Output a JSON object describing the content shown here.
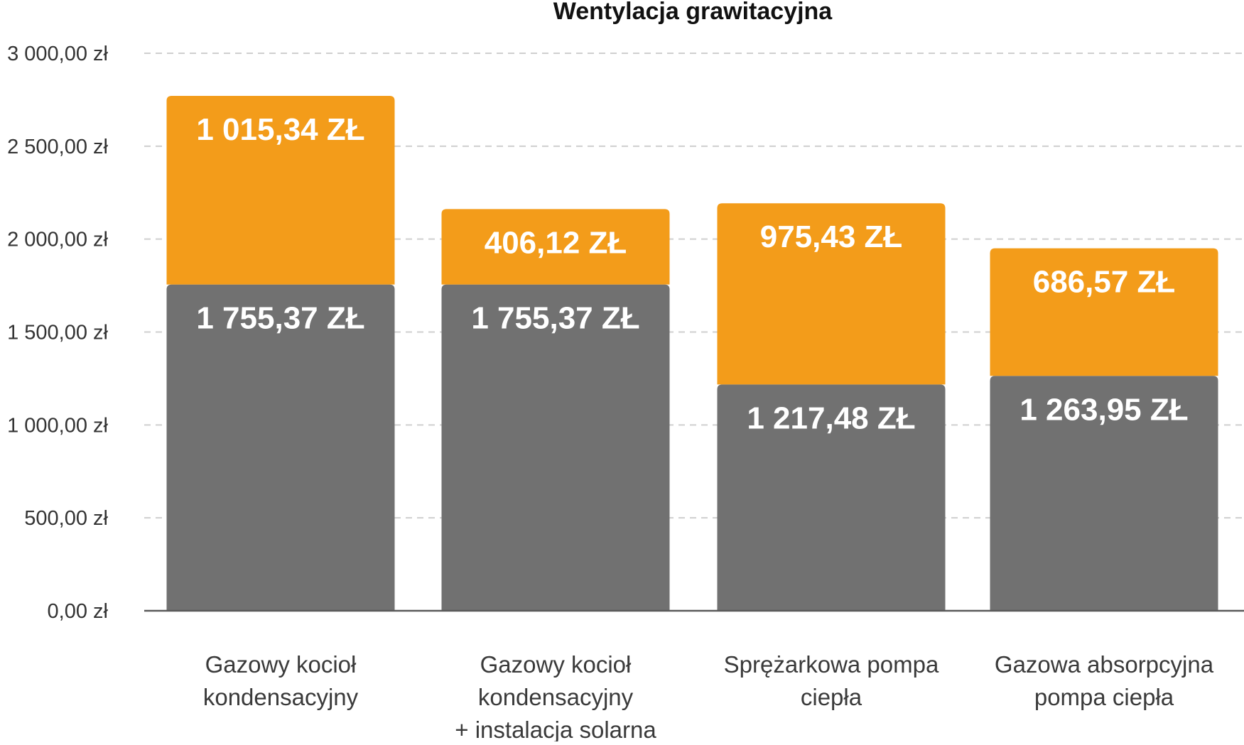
{
  "chart_data": {
    "type": "bar",
    "stacked": true,
    "title": "Wentylacja grawitacyjna",
    "xlabel": "",
    "ylabel": "",
    "ylim": [
      0,
      3000
    ],
    "grid": true,
    "yticks": [
      0,
      500,
      1000,
      1500,
      2000,
      2500,
      3000
    ],
    "ytick_labels": [
      "0,00 zł",
      "500,00 zł",
      "1 000,00 zł",
      "1 500,00 zł",
      "2 000,00 zł",
      "2 500,00 zł",
      "3 000,00 zł"
    ],
    "categories": [
      [
        "Gazowy kocioł",
        "kondensacyjny"
      ],
      [
        "Gazowy kocioł",
        "kondensacyjny",
        "+ instalacja solarna"
      ],
      [
        "Sprężarkowa pompa",
        "ciepła"
      ],
      [
        "Gazowa absorpcyjna",
        "pompa ciepła"
      ]
    ],
    "series": [
      {
        "color": "#717171",
        "values": [
          1755.37,
          1755.37,
          1217.48,
          1263.95
        ],
        "labels": [
          "1 755,37 ZŁ",
          "1 755,37 ZŁ",
          "1 217,48 ZŁ",
          "1 263,95 ZŁ"
        ]
      },
      {
        "color": "#f39c1a",
        "values": [
          1015.34,
          406.12,
          975.43,
          686.57
        ],
        "labels": [
          "1 015,34 ZŁ",
          "406,12 ZŁ",
          "975,43 ZŁ",
          "686,57 ZŁ"
        ]
      }
    ]
  }
}
